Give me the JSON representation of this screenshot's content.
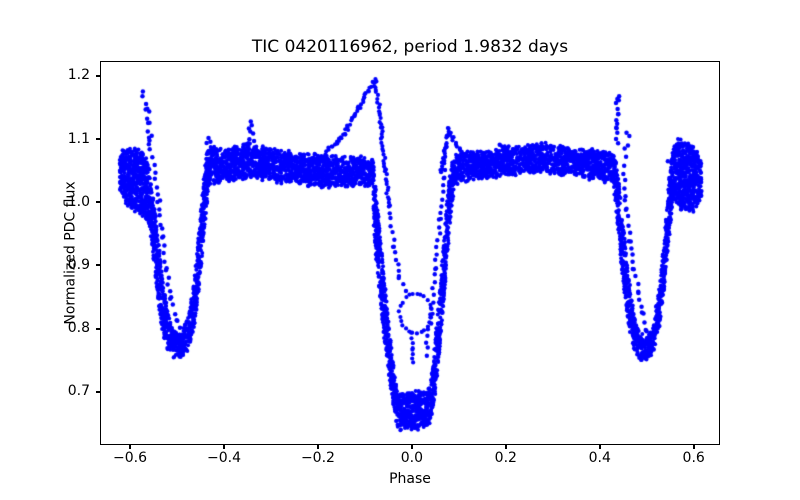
{
  "chart_data": {
    "type": "scatter",
    "title": "TIC 0420116962, period 1.9832 days",
    "xlabel": "Phase",
    "ylabel": "Normalized PDC flux",
    "xlim": [
      -0.664,
      0.656
    ],
    "ylim": [
      0.6158,
      1.2237
    ],
    "grid": false,
    "legend": "none",
    "marker_color": "#0000ff",
    "marker_radius": 2.0,
    "xticks": [
      -0.6,
      -0.4,
      -0.2,
      0.0,
      0.2,
      0.4,
      0.6
    ],
    "xtick_labels": [
      "−0.6",
      "−0.4",
      "−0.2",
      "0.0",
      "0.2",
      "0.4",
      "0.6"
    ],
    "yticks": [
      0.7,
      0.8,
      0.9,
      1.0,
      1.1,
      1.2
    ],
    "ytick_labels": [
      "0.7",
      "0.8",
      "0.9",
      "1.0",
      "1.1",
      "1.2"
    ],
    "description": "Phase-folded TESS light curve of an eclipsing binary: deep primary eclipse at phase 0 (flux ~0.64), secondary eclipses at phase ±0.5 (flux ~0.75), out-of-eclipse band near flux 1.03-1.09, flare-like ramp peaking at 1.195 near phase -0.08, smaller peak 1.12 near +0.075, outlier spikes to ~1.17 near phases -0.56 and +0.44, and a small loop of points near (0.01, 0.82) inside the primary eclipse.",
    "bands": [
      {
        "name": "left-edge-block",
        "anchors": [
          [
            -0.622,
            1.015,
            1.08
          ],
          [
            -0.605,
            0.995,
            1.086
          ],
          [
            -0.585,
            0.985,
            1.084
          ],
          [
            -0.568,
            0.978,
            1.072
          ],
          [
            -0.558,
            0.96,
            1.052
          ]
        ]
      },
      {
        "name": "secondary-eclipse-left",
        "anchors": [
          [
            -0.558,
            0.96,
            1.052
          ],
          [
            -0.545,
            0.875,
            0.975
          ],
          [
            -0.532,
            0.8,
            0.888
          ],
          [
            -0.519,
            0.766,
            0.824
          ],
          [
            -0.505,
            0.753,
            0.792
          ],
          [
            -0.49,
            0.754,
            0.79
          ],
          [
            -0.477,
            0.766,
            0.818
          ],
          [
            -0.464,
            0.8,
            0.872
          ],
          [
            -0.452,
            0.872,
            0.962
          ],
          [
            -0.441,
            0.962,
            1.058
          ],
          [
            -0.432,
            1.025,
            1.092
          ]
        ]
      },
      {
        "name": "out-of-eclipse-band-left",
        "anchors": [
          [
            -0.432,
            1.028,
            1.09
          ],
          [
            -0.405,
            1.034,
            1.083
          ],
          [
            -0.375,
            1.037,
            1.085
          ],
          [
            -0.345,
            1.042,
            1.094
          ],
          [
            -0.315,
            1.037,
            1.085
          ],
          [
            -0.275,
            1.032,
            1.08
          ],
          [
            -0.235,
            1.029,
            1.076
          ],
          [
            -0.195,
            1.026,
            1.073
          ],
          [
            -0.155,
            1.026,
            1.071
          ],
          [
            -0.115,
            1.028,
            1.071
          ],
          [
            -0.082,
            1.027,
            1.066
          ]
        ]
      },
      {
        "name": "primary-eclipse",
        "anchors": [
          [
            -0.082,
            0.96,
            1.066
          ],
          [
            -0.072,
            0.88,
            0.985
          ],
          [
            -0.062,
            0.805,
            0.905
          ],
          [
            -0.053,
            0.748,
            0.835
          ],
          [
            -0.045,
            0.705,
            0.778
          ],
          [
            -0.038,
            0.672,
            0.735
          ],
          [
            -0.032,
            0.65,
            0.702
          ],
          [
            -0.028,
            0.642,
            0.7
          ],
          [
            0.0,
            0.641,
            0.698
          ],
          [
            0.034,
            0.643,
            0.7
          ],
          [
            0.039,
            0.652,
            0.706
          ],
          [
            0.044,
            0.668,
            0.738
          ],
          [
            0.05,
            0.7,
            0.785
          ],
          [
            0.057,
            0.748,
            0.842
          ],
          [
            0.065,
            0.818,
            0.912
          ],
          [
            0.074,
            0.9,
            0.995
          ],
          [
            0.082,
            0.975,
            1.055
          ],
          [
            0.09,
            1.026,
            1.073
          ]
        ]
      },
      {
        "name": "out-of-eclipse-band-right",
        "anchors": [
          [
            0.09,
            1.03,
            1.074
          ],
          [
            0.135,
            1.037,
            1.079
          ],
          [
            0.185,
            1.043,
            1.085
          ],
          [
            0.235,
            1.047,
            1.089
          ],
          [
            0.285,
            1.049,
            1.091
          ],
          [
            0.335,
            1.044,
            1.086
          ],
          [
            0.385,
            1.038,
            1.081
          ],
          [
            0.428,
            1.033,
            1.077
          ]
        ]
      },
      {
        "name": "secondary-eclipse-right",
        "anchors": [
          [
            0.428,
            1.033,
            1.077
          ],
          [
            0.437,
            0.97,
            1.062
          ],
          [
            0.449,
            0.88,
            0.972
          ],
          [
            0.461,
            0.806,
            0.884
          ],
          [
            0.473,
            0.768,
            0.822
          ],
          [
            0.487,
            0.753,
            0.79
          ],
          [
            0.5,
            0.752,
            0.788
          ],
          [
            0.513,
            0.763,
            0.8
          ],
          [
            0.526,
            0.796,
            0.862
          ],
          [
            0.538,
            0.866,
            0.952
          ],
          [
            0.549,
            0.956,
            1.052
          ],
          [
            0.557,
            1.01,
            1.088
          ]
        ]
      },
      {
        "name": "right-edge-block",
        "anchors": [
          [
            0.557,
            1.005,
            1.09
          ],
          [
            0.568,
            0.99,
            1.098
          ],
          [
            0.582,
            0.988,
            1.092
          ],
          [
            0.598,
            0.985,
            1.086
          ],
          [
            0.61,
            1.0,
            1.078
          ],
          [
            0.617,
            1.012,
            1.062
          ]
        ]
      }
    ],
    "trails": [
      {
        "name": "flare-ramp",
        "spacing": 2,
        "jitter": 1.6,
        "radius": 2.1,
        "points": [
          [
            -0.19,
            1.073
          ],
          [
            -0.152,
            1.1
          ],
          [
            -0.112,
            1.15
          ],
          [
            -0.079,
            1.195
          ]
        ]
      },
      {
        "name": "flare-descent-upper",
        "spacing": 3,
        "jitter": 1.2,
        "radius": 2.1,
        "points": [
          [
            -0.077,
            1.193
          ],
          [
            -0.066,
            1.118
          ],
          [
            -0.057,
            1.052
          ],
          [
            -0.049,
            0.995
          ]
        ]
      },
      {
        "name": "flare-descent-lower",
        "spacing": 6.5,
        "jitter": 1.0,
        "radius": 2.2,
        "points": [
          [
            -0.049,
            0.995
          ],
          [
            -0.038,
            0.93
          ],
          [
            -0.026,
            0.882
          ],
          [
            -0.013,
            0.86
          ]
        ]
      },
      {
        "name": "primary-egress-outlier-trail",
        "spacing": 7,
        "jitter": 1.2,
        "radius": 2.2,
        "points": [
          [
            0.03,
            0.758
          ],
          [
            0.04,
            0.82
          ],
          [
            0.05,
            0.896
          ],
          [
            0.06,
            0.972
          ],
          [
            0.068,
            1.038
          ],
          [
            0.073,
            1.085
          ]
        ]
      },
      {
        "name": "post-eclipse-peak",
        "spacing": 2.5,
        "jitter": 1.5,
        "radius": 2.1,
        "points": [
          [
            0.064,
            1.045
          ],
          [
            0.07,
            1.08
          ],
          [
            0.0755,
            1.116
          ],
          [
            0.085,
            1.102
          ],
          [
            0.1,
            1.086
          ],
          [
            0.118,
            1.075
          ]
        ]
      },
      {
        "name": "secondary-left-inner-trail",
        "spacing": 7.5,
        "jitter": 1.3,
        "radius": 2.25,
        "points": [
          [
            -0.547,
            1.06
          ],
          [
            -0.539,
            1.0
          ],
          [
            -0.531,
            0.945
          ],
          [
            -0.522,
            0.893
          ],
          [
            -0.512,
            0.848
          ],
          [
            -0.502,
            0.812
          ],
          [
            -0.491,
            0.79
          ],
          [
            -0.478,
            0.796
          ]
        ]
      },
      {
        "name": "secondary-right-inner-trail",
        "spacing": 7.5,
        "jitter": 1.3,
        "radius": 2.25,
        "points": [
          [
            0.449,
            1.045
          ],
          [
            0.457,
            0.99
          ],
          [
            0.465,
            0.938
          ],
          [
            0.473,
            0.895
          ],
          [
            0.482,
            0.858
          ],
          [
            0.491,
            0.825
          ],
          [
            0.5,
            0.797
          ],
          [
            0.509,
            0.775
          ],
          [
            0.514,
            0.765
          ]
        ]
      },
      {
        "name": "outlier-spike-left",
        "spacing": 5,
        "jitter": 2.0,
        "radius": 2.25,
        "points": [
          [
            -0.552,
            1.075
          ],
          [
            -0.556,
            1.1
          ],
          [
            -0.561,
            1.125
          ],
          [
            -0.566,
            1.15
          ],
          [
            -0.57,
            1.172
          ]
        ]
      },
      {
        "name": "outlier-spike-right",
        "spacing": 5.5,
        "jitter": 1.6,
        "radius": 2.25,
        "points": [
          [
            0.436,
            1.095
          ],
          [
            0.437,
            1.118
          ],
          [
            0.438,
            1.14
          ],
          [
            0.44,
            1.162
          ],
          [
            0.441,
            1.17
          ]
        ]
      },
      {
        "name": "loop-to-bottom",
        "spacing": 5,
        "jitter": 1.0,
        "radius": 2.1,
        "points": [
          [
            -0.003,
            0.793
          ],
          [
            0.0,
            0.768
          ],
          [
            0.003,
            0.748
          ]
        ]
      }
    ],
    "loops": [
      {
        "name": "primary-eclipse-inner-loop",
        "cx": 0.0085,
        "cy": 0.824,
        "rx": 0.0345,
        "ry": 0.0315,
        "spacing": 4.5,
        "jitter": 1.0,
        "radius": 2.1
      }
    ],
    "dots": [
      [
        -0.356,
        1.06
      ],
      [
        -0.352,
        1.074
      ],
      [
        -0.349,
        1.088
      ],
      [
        -0.346,
        1.1
      ],
      [
        -0.344,
        1.112
      ],
      [
        -0.341,
        1.122
      ],
      [
        -0.338,
        1.109
      ],
      [
        -0.336,
        1.097
      ],
      [
        -0.333,
        1.085
      ],
      [
        -0.33,
        1.072
      ],
      [
        -0.343,
        1.128
      ],
      [
        -0.347,
        1.117
      ],
      [
        -0.437,
        1.094
      ],
      [
        -0.433,
        1.102
      ],
      [
        -0.429,
        1.096
      ],
      [
        0.187,
        1.091
      ],
      [
        0.452,
        1.058
      ],
      [
        0.456,
        1.072
      ],
      [
        0.46,
        1.09
      ],
      [
        0.463,
        1.105
      ],
      [
        0.457,
        1.11
      ],
      [
        0.453,
        1.085
      ],
      [
        -0.552,
        0.965
      ],
      [
        -0.549,
        0.985
      ],
      [
        0.545,
        1.065
      ]
    ]
  }
}
